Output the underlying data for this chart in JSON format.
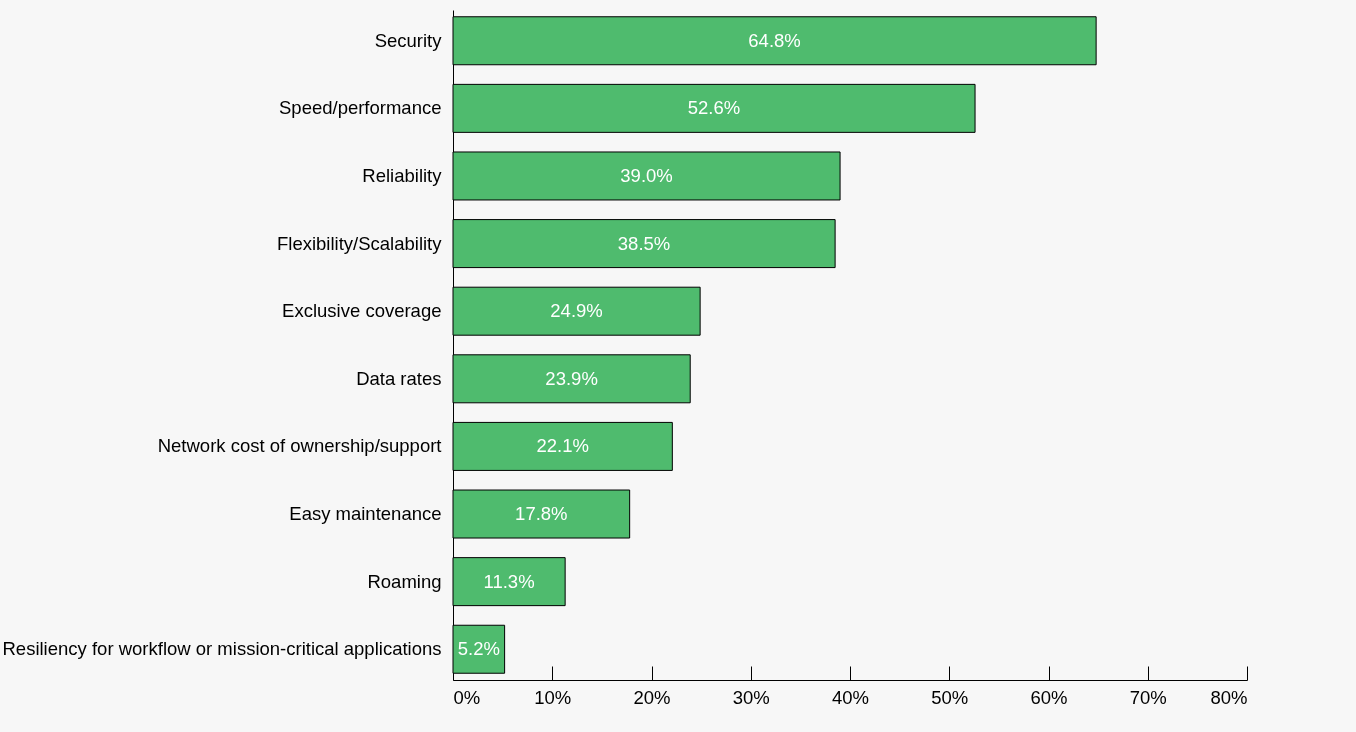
{
  "chart_data": {
    "type": "bar",
    "orientation": "horizontal",
    "categories": [
      "Security",
      "Speed/performance",
      "Reliability",
      "Flexibility/Scalability",
      "Exclusive coverage",
      "Data rates",
      "Network cost of ownership/support",
      "Easy maintenance",
      "Roaming",
      "Resiliency for workflow or mission-critical applications"
    ],
    "values": [
      64.8,
      52.6,
      39.0,
      38.5,
      24.9,
      23.9,
      22.1,
      17.8,
      11.3,
      5.2
    ],
    "value_labels": [
      "64.8%",
      "52.6%",
      "39.0%",
      "38.5%",
      "24.9%",
      "23.9%",
      "22.1%",
      "17.8%",
      "11.3%",
      "5.2%"
    ],
    "color": "#4fbb6e",
    "xlim": [
      0,
      80
    ],
    "xticks": [
      {
        "value": 0,
        "label": "0%"
      },
      {
        "value": 10,
        "label": "10%"
      },
      {
        "value": 20,
        "label": "20%"
      },
      {
        "value": 30,
        "label": "30%"
      },
      {
        "value": 40,
        "label": "40%"
      },
      {
        "value": 50,
        "label": "50%"
      },
      {
        "value": 60,
        "label": "60%"
      },
      {
        "value": 70,
        "label": "70%"
      },
      {
        "value": 80,
        "label": "80%"
      }
    ],
    "grid": false
  }
}
